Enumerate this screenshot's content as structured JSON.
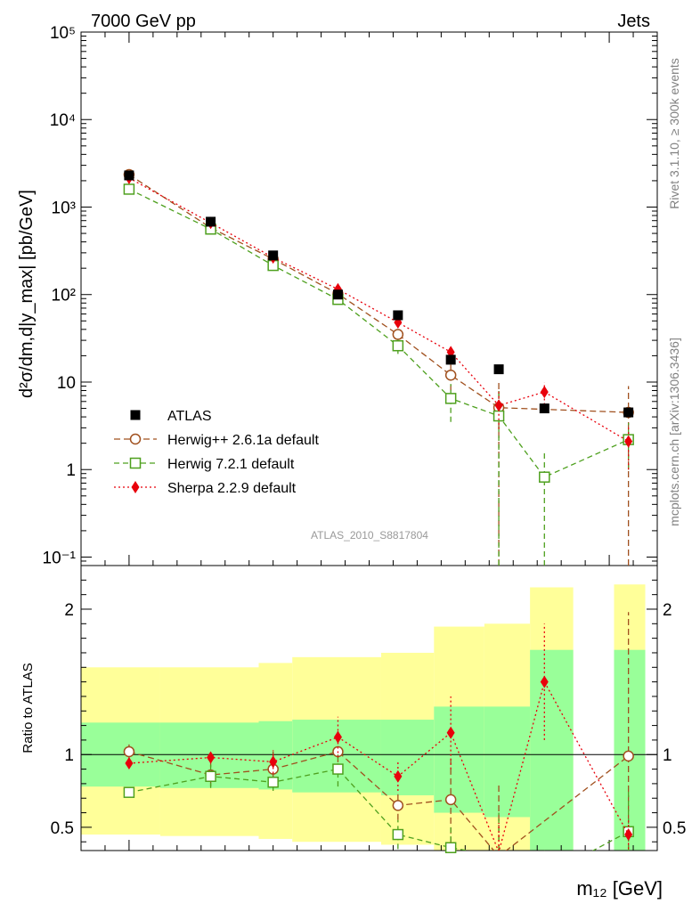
{
  "chart_data": {
    "type": "scatter",
    "header_left": "7000 GeV pp",
    "header_right": "Jets",
    "ylabel": "d²σ/dm,d|y_max| [pb/GeV]",
    "xlabel": "m₁₂ [GeV]",
    "ratio_ylabel": "Ratio to ATLAS",
    "analysis_label": "ATLAS_2010_S8817804",
    "side_label_top": "Rivet 3.1.10, ≥ 300k events",
    "side_label_bottom": "mcplots.cern.ch [arXiv:1306.3436]",
    "yscale": "log",
    "ylim": [
      0.08,
      100000
    ],
    "y_ticks": [
      {
        "value": 0.1,
        "label": "10⁻¹"
      },
      {
        "value": 1,
        "label": "1"
      },
      {
        "value": 10,
        "label": "10"
      },
      {
        "value": 100,
        "label": "10²"
      },
      {
        "value": 1000,
        "label": "10³"
      },
      {
        "value": 10000,
        "label": "10⁴"
      },
      {
        "value": 100000,
        "label": "10⁵"
      }
    ],
    "ratio_ylim": [
      0.34,
      2.3
    ],
    "ratio_ticks": [
      {
        "value": 0.5,
        "label": "0.5"
      },
      {
        "value": 1,
        "label": "1"
      },
      {
        "value": 2,
        "label": "2"
      }
    ],
    "bins": [
      {
        "lo": 0.0,
        "hi": 1.65
      },
      {
        "lo": 1.65,
        "hi": 3.7
      },
      {
        "lo": 3.7,
        "hi": 4.4
      },
      {
        "lo": 4.4,
        "hi": 6.25
      },
      {
        "lo": 6.25,
        "hi": 7.35
      },
      {
        "lo": 7.35,
        "hi": 8.4
      },
      {
        "lo": 8.4,
        "hi": 9.35
      },
      {
        "lo": 9.35,
        "hi": 10.25
      },
      {
        "lo": 11.1,
        "hi": 11.75
      }
    ],
    "x": [
      1.0,
      2.7,
      4.0,
      5.35,
      6.6,
      7.7,
      8.7,
      9.65,
      11.4
    ],
    "atlas": {
      "name": "ATLAS",
      "color": "#000000",
      "values": [
        2300,
        680,
        280,
        100,
        58,
        18,
        14,
        5.0,
        4.5
      ],
      "band_inner": [
        [
          0.78,
          1.22
        ],
        [
          0.77,
          1.22
        ],
        [
          0.76,
          1.23
        ],
        [
          0.74,
          1.24
        ],
        [
          0.72,
          1.24
        ],
        [
          0.6,
          1.33
        ],
        [
          0.57,
          1.33
        ],
        [
          0.3,
          1.72
        ],
        [
          0.3,
          1.72
        ]
      ],
      "band_outer": [
        [
          0.45,
          1.6
        ],
        [
          0.44,
          1.6
        ],
        [
          0.42,
          1.63
        ],
        [
          0.4,
          1.67
        ],
        [
          0.38,
          1.7
        ],
        [
          0.3,
          1.88
        ],
        [
          0.3,
          1.9
        ],
        [
          0.3,
          2.15
        ],
        [
          0.3,
          2.17
        ]
      ]
    },
    "series": [
      {
        "name": "Herwig++ 2.6.1a default",
        "color": "#a0501e",
        "marker": "circle",
        "dash": "7,4",
        "values": [
          2350,
          580,
          255,
          102,
          35,
          12,
          5.1,
          null,
          4.5
        ],
        "err_lo": [
          100,
          25,
          15,
          8,
          4,
          4,
          5.05,
          null,
          4.45
        ],
        "err_hi": [
          100,
          25,
          15,
          8,
          4,
          4,
          5.0,
          null,
          4.5
        ],
        "ratio": [
          1.02,
          0.86,
          0.9,
          1.02,
          0.65,
          0.69,
          0.3,
          null,
          0.99
        ],
        "ratio_err": [
          0.05,
          0.08,
          0.12,
          0.14,
          0.1,
          0.3,
          0.5,
          null,
          0.99
        ]
      },
      {
        "name": "Herwig 7.2.1 default",
        "color": "#4ea01e",
        "marker": "square",
        "dash": "6,4",
        "values": [
          1600,
          560,
          215,
          88,
          26,
          6.5,
          4.1,
          0.82,
          2.2
        ],
        "err_lo": [
          60,
          25,
          12,
          7,
          5,
          3,
          4.05,
          0.81,
          1.2
        ],
        "err_hi": [
          60,
          25,
          12,
          7,
          5,
          3,
          4.0,
          0.8,
          1.2
        ],
        "ratio": [
          0.74,
          0.85,
          0.81,
          0.9,
          0.45,
          0.36,
          0.3,
          0.16,
          0.47
        ],
        "ratio_err": [
          0.02,
          0.08,
          0.06,
          0.12,
          0.1,
          0.15,
          0.3,
          0.15,
          0.3
        ]
      },
      {
        "name": "Sherpa 2.2.9 default",
        "color": "#e8000b",
        "marker": "diamond",
        "dash": "2,3",
        "values": [
          2150,
          660,
          265,
          115,
          48,
          22,
          5.4,
          7.7,
          2.1
        ],
        "err_lo": [
          100,
          30,
          15,
          10,
          6,
          5,
          2.5,
          2.2,
          1.1
        ],
        "err_hi": [
          100,
          30,
          15,
          10,
          6,
          5,
          2.5,
          2.2,
          1.1
        ],
        "ratio": [
          0.94,
          0.98,
          0.95,
          1.12,
          0.85,
          1.15,
          0.33,
          1.5,
          0.45
        ],
        "ratio_err": [
          0.03,
          0.04,
          0.08,
          0.14,
          0.1,
          0.25,
          0.2,
          0.4,
          0.1
        ]
      }
    ]
  }
}
